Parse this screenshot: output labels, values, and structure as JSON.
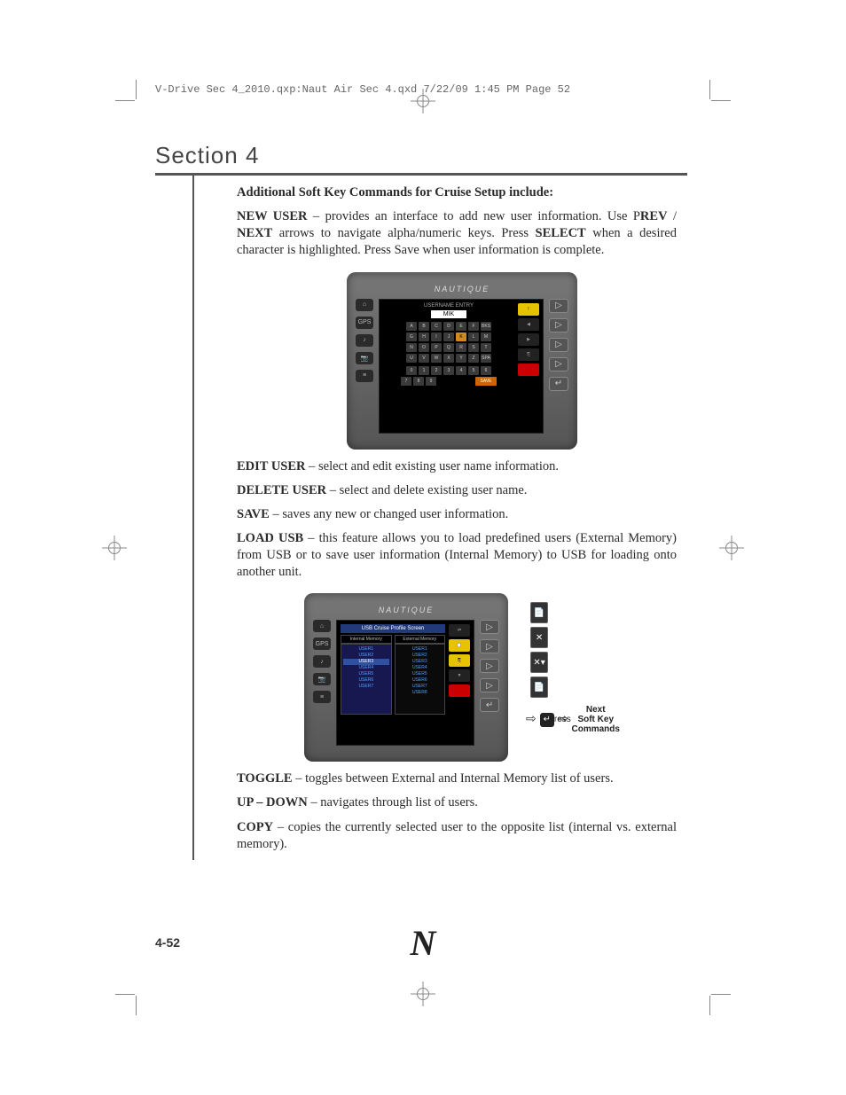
{
  "document": {
    "slug_line": "V-Drive Sec 4_2010.qxp:Naut Air Sec 4.qxd  7/22/09  1:45 PM  Page 52",
    "section_title": "Section 4",
    "page_number": "4-52",
    "logo_letter": "N"
  },
  "colors": {
    "text": "#2b2b2b",
    "rule": "#555555",
    "console_bg_top": "#777777",
    "console_bg_bot": "#555555",
    "screen_bg": "#000000",
    "key_bg": "#3a3a3a",
    "key_highlight": "#d08820",
    "softkey_yellow": "#e6c200",
    "softkey_red": "#cc0000",
    "usb_header": "#223a7a",
    "mem_item": "#4da0ff",
    "mem_selected": "#3050a0"
  },
  "content": {
    "intro_heading": "Additional Soft Key Commands for Cruise Setup include:",
    "new_user_cmd": "NEW USER",
    "new_user_text_1": " – provides an interface to add new user information. Use P",
    "new_user_rev": "REV",
    "new_user_sep": " / ",
    "new_user_next": "NEXT",
    "new_user_text_2": " arrows to navigate alpha/numeric keys. Press ",
    "new_user_select": "SELECT",
    "new_user_text_3": " when a desired character is highlighted. Press Save when user information is complete.",
    "edit_user_cmd": "EDIT USER",
    "edit_user_text": " – select and edit existing user name information.",
    "delete_user_cmd": "DELETE USER",
    "delete_user_text": " – select and delete existing user name.",
    "save_cmd": "SAVE",
    "save_text": " – saves any new or changed user information.",
    "load_usb_cmd": "LOAD USB",
    "load_usb_text": " – this feature allows you to load predefined users (External Memory) from USB or to save user information (Internal Memory) to USB for loading onto another unit.",
    "toggle_cmd": "TOGGLE",
    "toggle_text": " – toggles between External and Internal Memory list of users.",
    "updown_cmd": "UP – DOWN",
    "updown_text": " – navigates through list of users.",
    "copy_cmd": "COPY",
    "copy_text": " – copies the currently selected user to the opposite list (internal vs. external memory)."
  },
  "figure1": {
    "brand": "NAUTIQUE",
    "screen_title": "USERNAME ENTRY",
    "name_value": "MIK",
    "left_icons": [
      "⌂",
      "GPS",
      "♪",
      "📷",
      "≡"
    ],
    "right_icons": [
      "▷",
      "▷",
      "▷",
      "▷",
      "↵"
    ],
    "softkeys": [
      {
        "label": "!",
        "icon": "",
        "bg": "ylw"
      },
      {
        "label": "",
        "icon": "◀",
        "bg": ""
      },
      {
        "label": "",
        "icon": "▶",
        "bg": ""
      },
      {
        "label": "",
        "icon": "⎘",
        "bg": ""
      },
      {
        "label": "",
        "icon": "",
        "bg": "red"
      }
    ],
    "keyboard_rows": [
      [
        "A",
        "B",
        "C",
        "D",
        "E",
        "F",
        "BKSP"
      ],
      [
        "G",
        "H",
        "I",
        "J",
        "K",
        "L",
        "M"
      ],
      [
        "N",
        "O",
        "P",
        "Q",
        "R",
        "S",
        "T"
      ],
      [
        "U",
        "V",
        "W",
        "X",
        "Y",
        "Z",
        "SPACE"
      ]
    ],
    "highlighted_key": "K",
    "num_rows": [
      [
        "0",
        "1",
        "2",
        "3",
        "4",
        "5",
        "6"
      ],
      [
        "7",
        "8",
        "9",
        "",
        "",
        "",
        "SAVE"
      ]
    ]
  },
  "figure2": {
    "brand": "NAUTIQUE",
    "screen_title": "USB Cruise Profile Screen",
    "internal_header": "Internal Memory",
    "external_header": "External Memory",
    "internal_items": [
      "USER1",
      "USER2",
      "USER3",
      "USER4",
      "USER5",
      "USER6",
      "USER7"
    ],
    "internal_selected_index": 2,
    "external_items": [
      "USER1",
      "USER2",
      "USER3",
      "USER4",
      "USER5",
      "USER6",
      "USER7",
      "USER8"
    ],
    "left_icons": [
      "⌂",
      "GPS",
      "♪",
      "📷",
      "≡"
    ],
    "right_icons": [
      "▷",
      "▷",
      "▷",
      "▷",
      "↵"
    ],
    "softkeys": [
      {
        "label": "",
        "icon": "⇄",
        "bg": ""
      },
      {
        "label": "",
        "icon": "📋",
        "bg": "ylw"
      },
      {
        "label": "",
        "icon": "⎘",
        "bg": "ylw"
      },
      {
        "label": "",
        "icon": "▼",
        "bg": ""
      },
      {
        "label": "",
        "icon": "",
        "bg": "red"
      }
    ],
    "press_label": "Press",
    "next_label": "Next\nSoft Key\nCommands",
    "strip_icons": [
      {
        "icon": "📄",
        "color": "#d0d0d0"
      },
      {
        "icon": "✕",
        "color": "#ffffff"
      },
      {
        "icon": "✕▾",
        "color": "#ffffff"
      },
      {
        "icon": "📄",
        "color": "#c08040"
      }
    ]
  }
}
